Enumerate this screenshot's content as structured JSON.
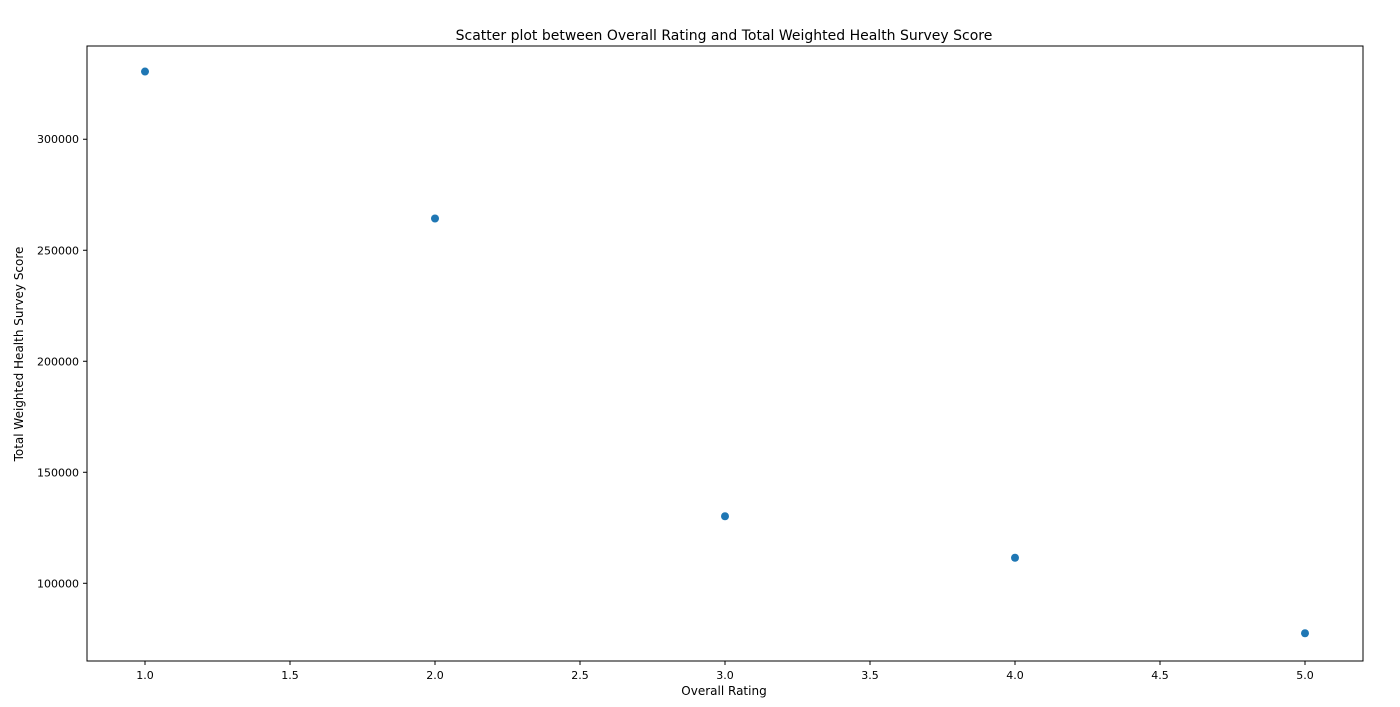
{
  "chart_data": {
    "type": "scatter",
    "title": "Scatter plot between Overall Rating and Total Weighted Health Survey Score",
    "xlabel": "Overall Rating",
    "ylabel": "Total Weighted Health Survey Score",
    "x": [
      1.0,
      2.0,
      3.0,
      4.0,
      5.0
    ],
    "y": [
      330500,
      264300,
      130200,
      111500,
      77500
    ],
    "xlim": [
      0.8,
      5.2
    ],
    "ylim": [
      65000,
      342000
    ],
    "xticks": [
      1.0,
      1.5,
      2.0,
      2.5,
      3.0,
      3.5,
      4.0,
      4.5,
      5.0
    ],
    "xtick_labels": [
      "1.0",
      "1.5",
      "2.0",
      "2.5",
      "3.0",
      "3.5",
      "4.0",
      "4.5",
      "5.0"
    ],
    "yticks": [
      100000,
      150000,
      200000,
      250000,
      300000
    ],
    "ytick_labels": [
      "100000",
      "150000",
      "200000",
      "250000",
      "300000"
    ],
    "grid": false,
    "legend": "none",
    "marker_color": "#1f77b4"
  }
}
